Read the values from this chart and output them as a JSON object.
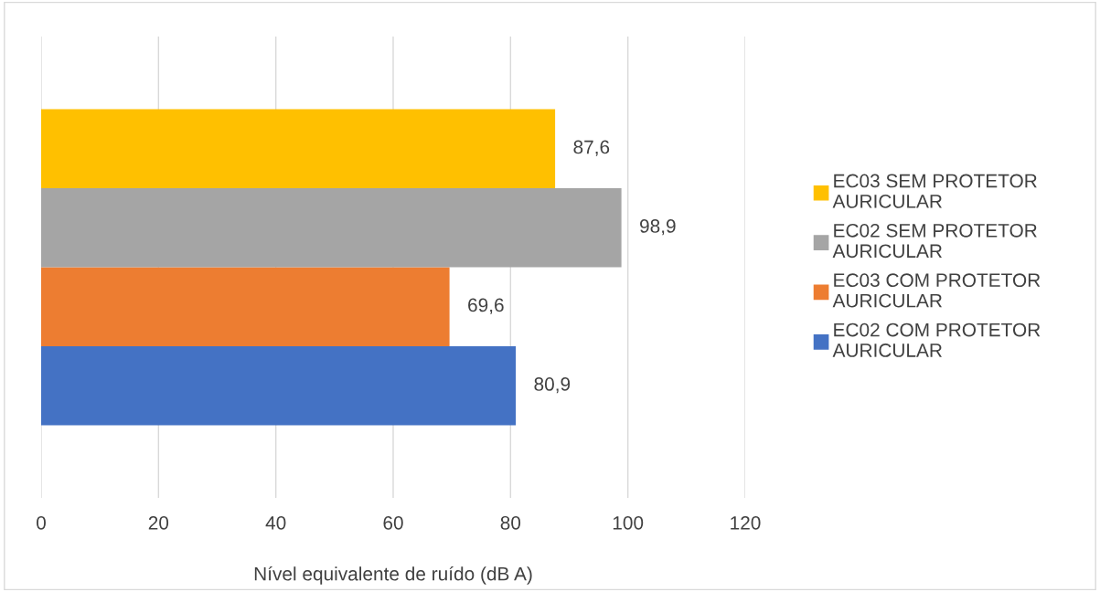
{
  "chart_data": {
    "type": "bar",
    "orientation": "horizontal",
    "categories": [
      null
    ],
    "xlabel": "Nível equivalente de ruído (dB A)",
    "series": [
      {
        "name": "EC02 COM PROTETOR AURICULAR",
        "color": "#4472c4",
        "values": [
          80.9
        ],
        "value_labels": [
          "80,9"
        ]
      },
      {
        "name": "EC03 COM PROTETOR AURICULAR",
        "color": "#ed7d31",
        "values": [
          69.6
        ],
        "value_labels": [
          "69,6"
        ]
      },
      {
        "name": "EC02 SEM PROTETOR AURICULAR",
        "color": "#a5a5a5",
        "values": [
          98.9
        ],
        "value_labels": [
          "98,9"
        ]
      },
      {
        "name": "EC03 SEM PROTETOR AURICULAR",
        "color": "#ffc000",
        "values": [
          87.6
        ],
        "value_labels": [
          "87,6"
        ]
      }
    ],
    "xlim": [
      0,
      120
    ],
    "xticks": [
      0,
      20,
      40,
      60,
      80,
      100,
      120
    ],
    "grid": "x",
    "legend": "right"
  }
}
